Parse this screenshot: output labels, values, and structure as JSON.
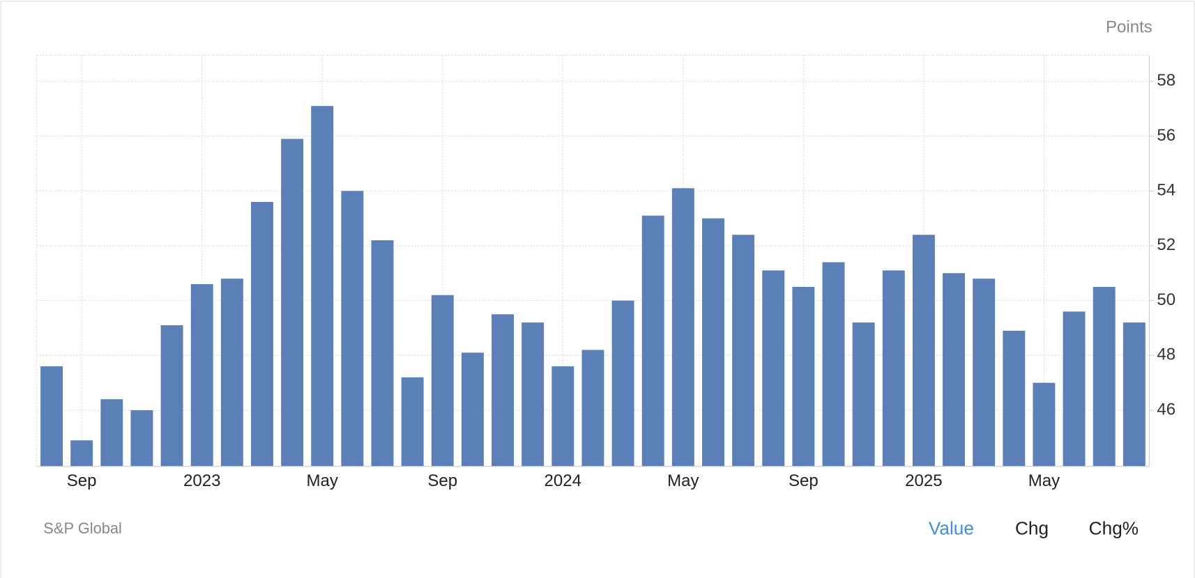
{
  "chart_data": {
    "type": "bar",
    "unit_label": "Points",
    "source": "S&P Global",
    "tabs": [
      "Value",
      "Chg",
      "Chg%"
    ],
    "active_tab": 0,
    "categories": [
      null,
      "Sep",
      null,
      null,
      null,
      "2023",
      null,
      null,
      null,
      "May",
      null,
      null,
      null,
      "Sep",
      null,
      null,
      null,
      "2024",
      null,
      null,
      null,
      "May",
      null,
      null,
      null,
      "Sep",
      null,
      null,
      null,
      "2025",
      null,
      null,
      null,
      "May",
      null,
      null,
      null
    ],
    "values": [
      47.6,
      44.9,
      46.4,
      46.0,
      49.1,
      50.6,
      50.8,
      53.6,
      55.9,
      57.1,
      54.0,
      52.2,
      47.2,
      50.2,
      48.1,
      49.5,
      49.2,
      47.6,
      48.2,
      50.0,
      53.1,
      54.1,
      53.0,
      52.4,
      51.1,
      50.5,
      51.4,
      49.2,
      51.1,
      52.4,
      51.0,
      50.8,
      48.9,
      47.0,
      49.6,
      50.5,
      49.2
    ],
    "color": "#5b80b8",
    "ylim": [
      43.95,
      58.95
    ],
    "yticks": [
      46,
      48,
      50,
      52,
      54,
      56,
      58
    ],
    "grid": true
  }
}
